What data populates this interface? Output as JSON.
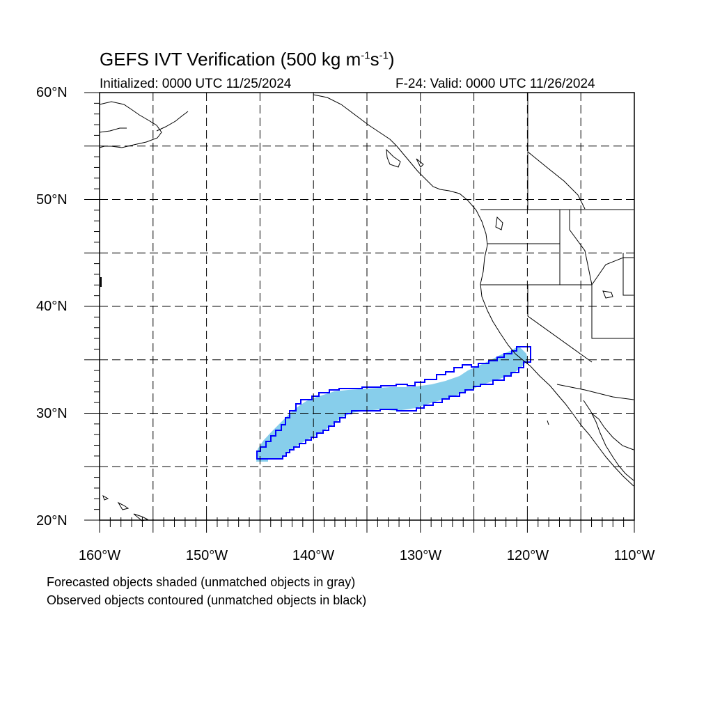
{
  "title": {
    "main": "GEFS IVT Verification (500 kg m",
    "exp1": "-1",
    "mid": "s",
    "exp2": "-1",
    "end": ")"
  },
  "subtitle_left": "Initialized: 0000 UTC 11/25/2024",
  "subtitle_right": "F-24: Valid: 0000 UTC 11/26/2024",
  "lat_labels": {
    "l60": "60°N",
    "l50": "50°N",
    "l40": "40°N",
    "l30": "30°N",
    "l20": "20°N"
  },
  "lon_labels": {
    "w160": "160°W",
    "w150": "150°W",
    "w140": "140°W",
    "w130": "130°W",
    "w120": "120°W",
    "w110": "110°W"
  },
  "notes": {
    "forecast": "Forecasted objects shaded (unmatched objects in gray)",
    "observed": "Observed objects contoured (unmatched objects in black)"
  },
  "map": {
    "lon_range": [
      -160,
      -110
    ],
    "lat_range": [
      20,
      60
    ],
    "gridlines": "dashed, every 5 degrees",
    "forecast_fill_color": "#87ceeb",
    "observed_contour_color": "#0000ff",
    "coastline_color": "#000000"
  }
}
